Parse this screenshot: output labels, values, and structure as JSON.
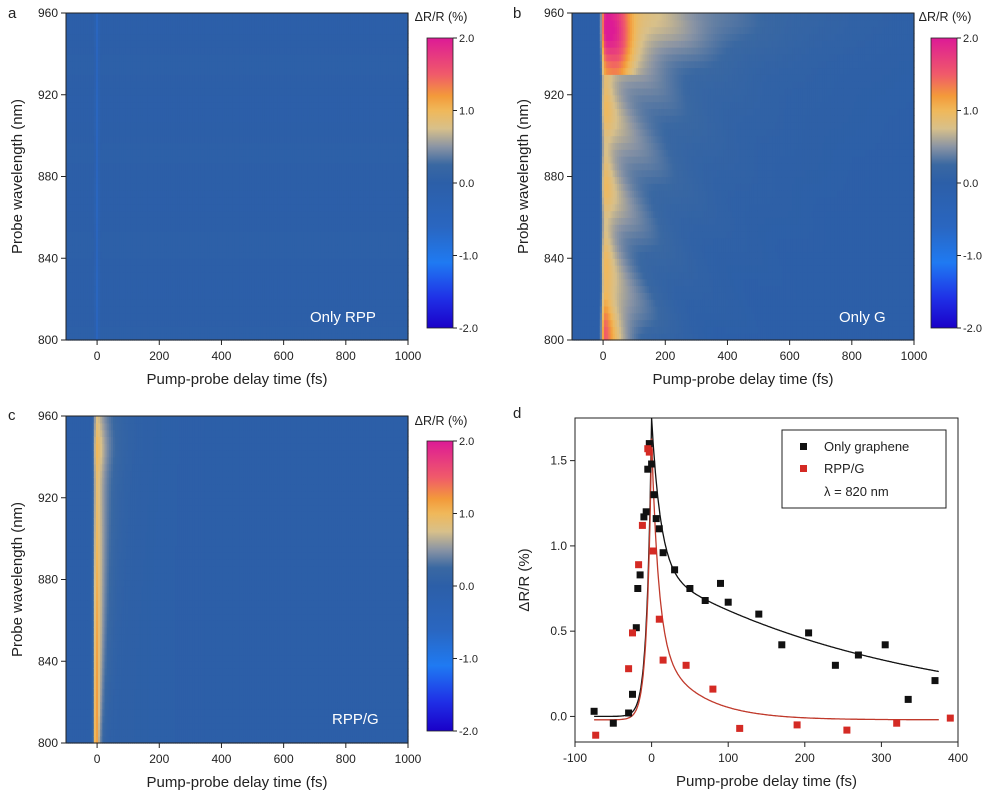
{
  "figure": {
    "colorbar_ticks": [
      "2.0",
      "1.0",
      "0.0",
      "-1.0",
      "-2.0"
    ],
    "colorbar_title": "ΔR/R (%)",
    "colorscale": [
      {
        "v": -2.0,
        "c": "#1a00c8"
      },
      {
        "v": -1.6,
        "c": "#1f2fe6"
      },
      {
        "v": -1.1,
        "c": "#1f7af2"
      },
      {
        "v": -0.6,
        "c": "#2a66c0"
      },
      {
        "v": 0.0,
        "c": "#2c5fa8"
      },
      {
        "v": 0.25,
        "c": "#3a68a2"
      },
      {
        "v": 0.5,
        "c": "#8a94a4"
      },
      {
        "v": 0.75,
        "c": "#d8c08a"
      },
      {
        "v": 1.0,
        "c": "#f0b85a"
      },
      {
        "v": 1.2,
        "c": "#f39a3a"
      },
      {
        "v": 1.5,
        "c": "#f05a6a"
      },
      {
        "v": 2.0,
        "c": "#dd1a96"
      }
    ]
  },
  "chart_data": [
    {
      "panel": "a",
      "type": "heatmap",
      "inset_label": "Only RPP",
      "xlabel": "Pump-probe delay time (fs)",
      "ylabel": "Probe wavelength (nm)",
      "xlim": [
        -100,
        1000
      ],
      "ylim": [
        800,
        960
      ],
      "x_ticks": [
        "0",
        "200",
        "400",
        "600",
        "800",
        "1000"
      ],
      "x_tick_values": [
        0,
        200,
        400,
        600,
        800,
        1000
      ],
      "y_ticks": [
        "800",
        "840",
        "880",
        "920",
        "960"
      ],
      "y_tick_values": [
        800,
        840,
        880,
        920,
        960
      ],
      "zlim": [
        -2.0,
        2.0
      ],
      "features": "Uniform ~0 background with a faint negative (about -0.6 %) line at 0 fs across all wavelengths"
    },
    {
      "panel": "b",
      "type": "heatmap",
      "inset_label": "Only G",
      "xlabel": "Pump-probe delay time (fs)",
      "ylabel": "Probe wavelength (nm)",
      "xlim": [
        -100,
        1000
      ],
      "ylim": [
        800,
        960
      ],
      "x_ticks": [
        "0",
        "200",
        "400",
        "600",
        "800",
        "1000"
      ],
      "x_tick_values": [
        0,
        200,
        400,
        600,
        800,
        1000
      ],
      "y_ticks": [
        "800",
        "840",
        "880",
        "920",
        "960"
      ],
      "y_tick_values": [
        800,
        840,
        880,
        920,
        960
      ],
      "zlim": [
        -2.0,
        2.0
      ],
      "features": "Strong positive signal (up to ~2 %) near 0-60 fs, peaking at 940-960 nm and 800-830 nm, decaying over ~400 fs"
    },
    {
      "panel": "c",
      "type": "heatmap",
      "inset_label": "RPP/G",
      "xlabel": "Pump-probe delay time (fs)",
      "ylabel": "Probe wavelength (nm)",
      "xlim": [
        -100,
        1000
      ],
      "ylim": [
        800,
        960
      ],
      "x_ticks": [
        "0",
        "200",
        "400",
        "600",
        "800",
        "1000"
      ],
      "x_tick_values": [
        0,
        200,
        400,
        600,
        800,
        1000
      ],
      "y_ticks": [
        "800",
        "840",
        "880",
        "920",
        "960"
      ],
      "y_tick_values": [
        800,
        840,
        880,
        920,
        960
      ],
      "zlim": [
        -2.0,
        2.0
      ],
      "features": "Narrow positive stripe around 0 fs (strongest ~1.6 % at 800-860 nm) with fast decay within ~50 fs"
    },
    {
      "panel": "d",
      "type": "scatter",
      "xlabel": "Pump-probe delay time (fs)",
      "ylabel": "ΔR/R (%)",
      "xlim": [
        -100,
        400
      ],
      "ylim": [
        -0.15,
        1.75
      ],
      "x_ticks": [
        "-100",
        "0",
        "100",
        "200",
        "300",
        "400"
      ],
      "x_tick_values": [
        -100,
        0,
        100,
        200,
        300,
        400
      ],
      "y_ticks": [
        "0.0",
        "0.5",
        "1.0",
        "1.5"
      ],
      "y_tick_values": [
        0.0,
        0.5,
        1.0,
        1.5
      ],
      "legend": [
        "Only graphene",
        "RPP/G",
        "λ = 820 nm"
      ],
      "legend_position": "top-right",
      "series": [
        {
          "name": "Only graphene",
          "color": "#111111",
          "x": [
            -75,
            -50,
            -30,
            -25,
            -20,
            -18,
            -15,
            -10,
            -7,
            -5,
            -3,
            0,
            3,
            6,
            10,
            15,
            30,
            50,
            70,
            90,
            100,
            140,
            170,
            205,
            240,
            270,
            305,
            335,
            370
          ],
          "y": [
            0.03,
            -0.04,
            0.02,
            0.13,
            0.52,
            0.75,
            0.83,
            1.17,
            1.2,
            1.45,
            1.6,
            1.48,
            1.3,
            1.16,
            1.1,
            0.96,
            0.86,
            0.75,
            0.68,
            0.78,
            0.67,
            0.6,
            0.42,
            0.49,
            0.3,
            0.36,
            0.42,
            0.1,
            0.21
          ]
        },
        {
          "name": "RPP/G",
          "color": "#d42a24",
          "x": [
            -73,
            -30,
            -25,
            -17,
            -12,
            -5,
            -3,
            2,
            10,
            15,
            45,
            80,
            115,
            190,
            255,
            320,
            390
          ],
          "y": [
            -0.11,
            0.28,
            0.49,
            0.89,
            1.12,
            1.57,
            1.55,
            0.97,
            0.57,
            0.33,
            0.3,
            0.16,
            -0.07,
            -0.05,
            -0.08,
            -0.04,
            -0.01
          ]
        }
      ],
      "fits": [
        {
          "name": "graphene fit",
          "color": "#111111",
          "rise_tau": 6,
          "decay": [
            {
              "amp": 0.9,
              "tau": 12
            },
            {
              "amp": 0.85,
              "tau": 320
            }
          ],
          "offset": 0.0
        },
        {
          "name": "RPP/G fit",
          "color": "#c0392b",
          "rise_tau": 6,
          "decay": [
            {
              "amp": 1.2,
              "tau": 9
            },
            {
              "amp": 0.45,
              "tau": 55
            }
          ],
          "offset": -0.02
        }
      ]
    }
  ]
}
